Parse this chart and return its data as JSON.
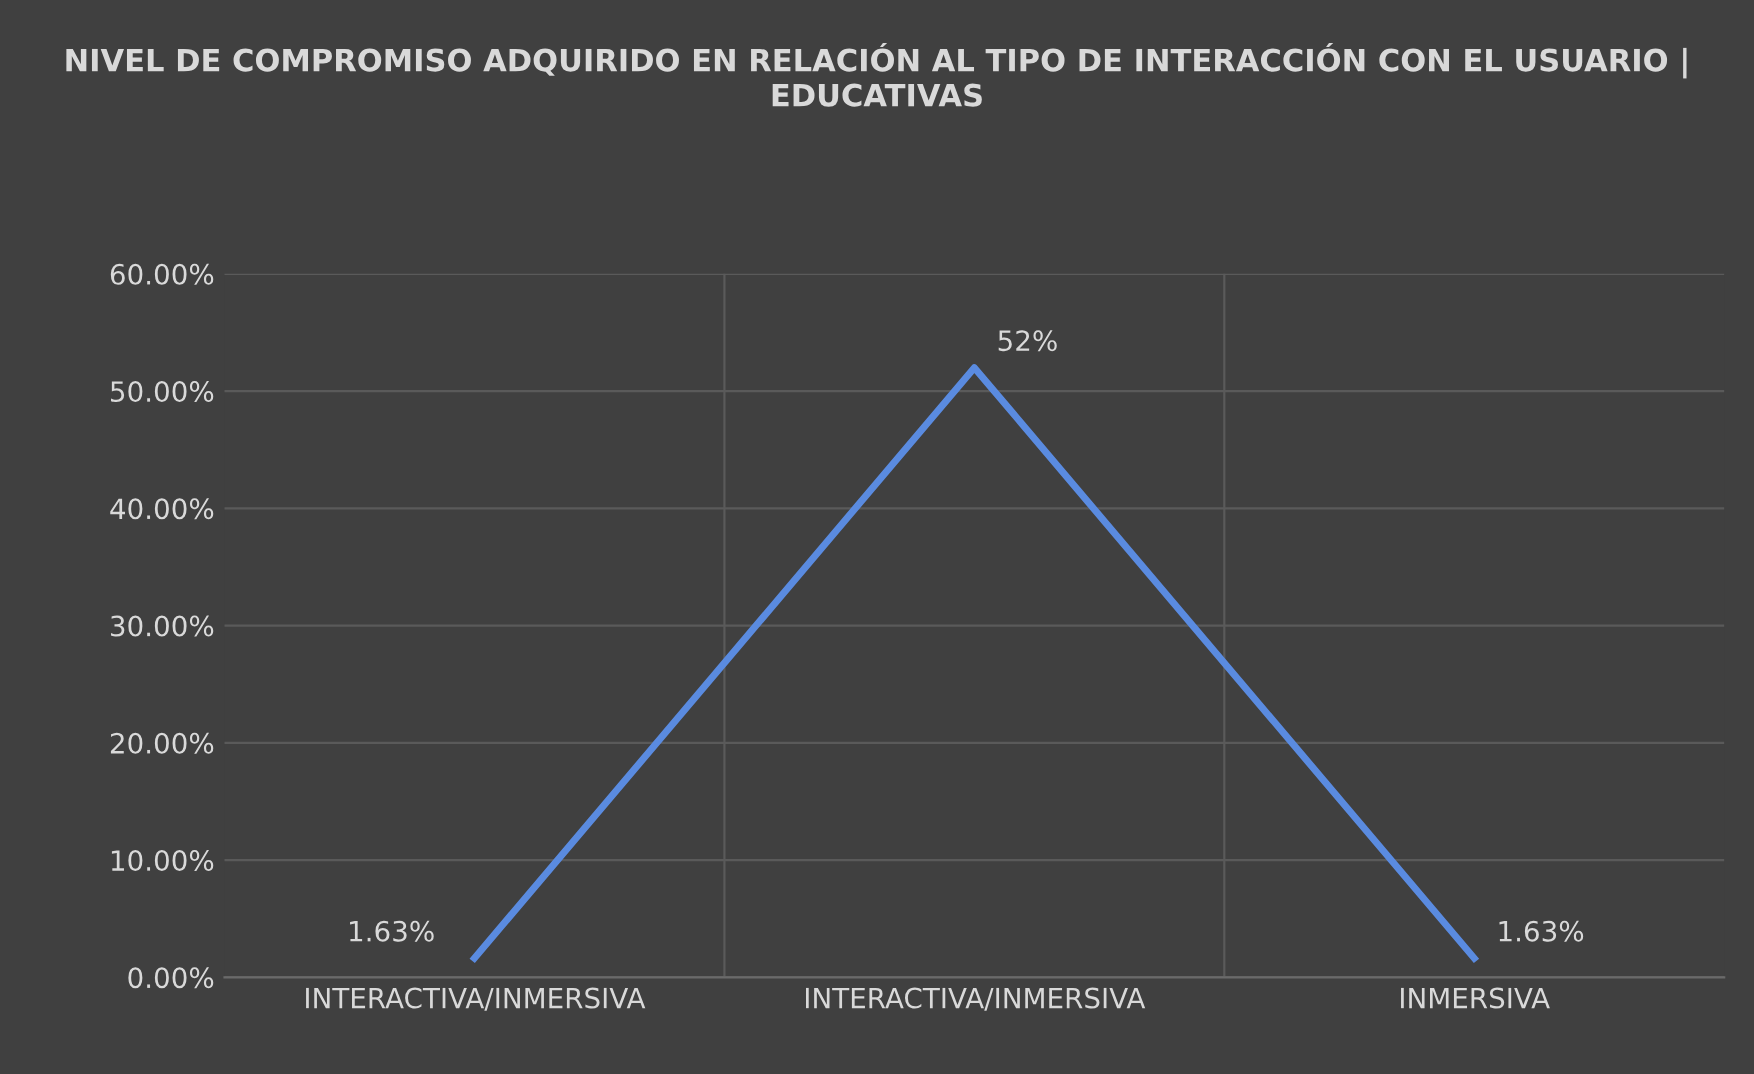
{
  "chart_data": {
    "type": "line",
    "title": "NIVEL DE COMPROMISO ADQUIRIDO EN RELACIÓN AL TIPO DE INTERACCIÓN CON EL USUARIO | EDUCATIVAS",
    "categories": [
      "INTERACTIVA/INMERSIVA",
      "INTERACTIVA/INMERSIVA",
      "INMERSIVA"
    ],
    "series": [
      {
        "color": "#5a8be0",
        "values": [
          1.63,
          52,
          1.63
        ],
        "value_labels": [
          "1.63%",
          "52%",
          "1.63%"
        ]
      }
    ],
    "ylim": [
      0,
      60
    ],
    "yticks": [
      {
        "value": 0,
        "label": "0.00%"
      },
      {
        "value": 10,
        "label": "10.00%"
      },
      {
        "value": 20,
        "label": "20.00%"
      },
      {
        "value": 30,
        "label": "30.00%"
      },
      {
        "value": 40,
        "label": "40.00%"
      },
      {
        "value": 50,
        "label": "50.00%"
      },
      {
        "value": 60,
        "label": "60.00%"
      }
    ],
    "grid": true,
    "legend": false
  }
}
